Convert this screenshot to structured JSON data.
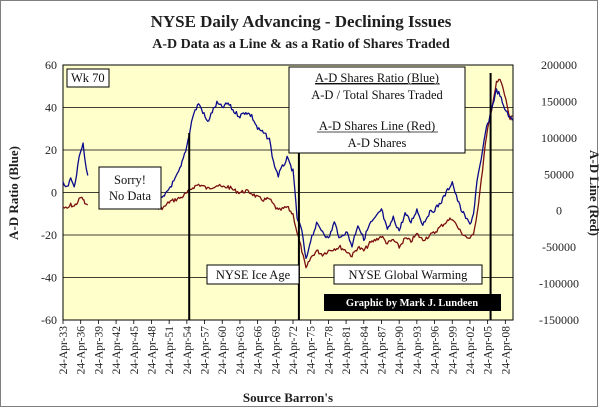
{
  "chart_data": {
    "type": "line",
    "title": "NYSE Daily Advancing - Declining Issues",
    "subtitle": "A-D Data as a Line & as a Ratio of Shares Traded",
    "xlabel": "Source Barron's",
    "ylabel_left": "A-D Ratio (Blue)",
    "ylabel_right": "A-D Line (Red)",
    "ylim_left": [
      -60,
      60
    ],
    "ylim_right": [
      -150000,
      200000
    ],
    "yticks_left": [
      60,
      40,
      20,
      0,
      -20,
      -40,
      -60
    ],
    "yticks_right": [
      "200000",
      "150000",
      "100000",
      "50000",
      "0",
      "-50000",
      "-100000",
      "-150000"
    ],
    "xlim_years": [
      1933.3,
      2009.6
    ],
    "x_tick_labels": [
      "24-Apr-33",
      "24-Apr-36",
      "24-Apr-39",
      "24-Apr-42",
      "24-Apr-45",
      "24-Apr-48",
      "24-Apr-51",
      "24-Apr-54",
      "24-Apr-57",
      "24-Apr-60",
      "24-Apr-63",
      "24-Apr-66",
      "24-Apr-69",
      "24-Apr-72",
      "24-Apr-75",
      "24-Apr-78",
      "24-Apr-81",
      "24-Apr-84",
      "24-Apr-87",
      "24-Apr-90",
      "24-Apr-93",
      "24-Apr-96",
      "24-Apr-99",
      "24-Apr-02",
      "24-Apr-05",
      "24-Apr-08"
    ],
    "x_tick_years": [
      1933.3,
      1936.3,
      1939.3,
      1942.3,
      1945.3,
      1948.3,
      1951.3,
      1954.3,
      1957.3,
      1960.3,
      1963.3,
      1966.3,
      1969.3,
      1972.3,
      1975.3,
      1978.3,
      1981.3,
      1984.3,
      1987.3,
      1990.3,
      1993.3,
      1996.3,
      1999.3,
      2002.3,
      2005.3,
      2008.3
    ],
    "no_data_gap_years": [
      1937.5,
      1947.5
    ],
    "series": [
      {
        "name": "A-D Shares Ratio (Blue)",
        "axis": "left",
        "color": "#0b0b8c",
        "points": [
          [
            1933.3,
            4
          ],
          [
            1934.0,
            2
          ],
          [
            1934.6,
            6
          ],
          [
            1935.2,
            3
          ],
          [
            1935.8,
            12
          ],
          [
            1936.3,
            20
          ],
          [
            1936.7,
            24
          ],
          [
            1937.0,
            16
          ],
          [
            1937.5,
            8
          ],
          null,
          [
            1947.5,
            0
          ],
          [
            1948.5,
            -3
          ],
          [
            1949.5,
            -4
          ],
          [
            1950.5,
            -2
          ],
          [
            1951.3,
            2
          ],
          [
            1952.3,
            6
          ],
          [
            1953.3,
            12
          ],
          [
            1954.3,
            22
          ],
          [
            1955.3,
            36
          ],
          [
            1956.3,
            42
          ],
          [
            1957.0,
            38
          ],
          [
            1957.8,
            33
          ],
          [
            1958.6,
            38
          ],
          [
            1959.4,
            42
          ],
          [
            1960.3,
            40
          ],
          [
            1961.3,
            42
          ],
          [
            1962.3,
            38
          ],
          [
            1963.3,
            36
          ],
          [
            1964.3,
            38
          ],
          [
            1965.3,
            36
          ],
          [
            1966.3,
            30
          ],
          [
            1967.3,
            28
          ],
          [
            1968.3,
            25
          ],
          [
            1969.0,
            14
          ],
          [
            1969.8,
            8
          ],
          [
            1970.5,
            12
          ],
          [
            1971.3,
            16
          ],
          [
            1972.3,
            10
          ],
          [
            1973.0,
            -12
          ],
          [
            1973.8,
            -18
          ],
          [
            1974.5,
            -32
          ],
          [
            1975.3,
            -22
          ],
          [
            1976.3,
            -15
          ],
          [
            1977.3,
            -18
          ],
          [
            1978.3,
            -22
          ],
          [
            1979.3,
            -14
          ],
          [
            1980.3,
            -22
          ],
          [
            1981.3,
            -18
          ],
          [
            1982.3,
            -25
          ],
          [
            1983.3,
            -15
          ],
          [
            1984.3,
            -22
          ],
          [
            1985.3,
            -15
          ],
          [
            1986.3,
            -12
          ],
          [
            1987.3,
            -8
          ],
          [
            1988.3,
            -18
          ],
          [
            1989.3,
            -12
          ],
          [
            1990.3,
            -18
          ],
          [
            1991.3,
            -10
          ],
          [
            1992.3,
            -14
          ],
          [
            1993.3,
            -8
          ],
          [
            1994.3,
            -15
          ],
          [
            1995.3,
            -10
          ],
          [
            1996.3,
            -8
          ],
          [
            1997.3,
            -5
          ],
          [
            1998.3,
            0
          ],
          [
            1999.3,
            5
          ],
          [
            2000.0,
            -2
          ],
          [
            2000.8,
            -8
          ],
          [
            2001.6,
            -12
          ],
          [
            2002.3,
            -15
          ],
          [
            2002.9,
            -10
          ],
          [
            2003.5,
            5
          ],
          [
            2004.2,
            15
          ],
          [
            2004.9,
            28
          ],
          [
            2005.5,
            34
          ],
          [
            2006.2,
            42
          ],
          [
            2006.8,
            48
          ],
          [
            2007.4,
            46
          ],
          [
            2008.0,
            40
          ],
          [
            2008.6,
            38
          ],
          [
            2009.1,
            35
          ],
          [
            2009.5,
            34
          ]
        ]
      },
      {
        "name": "A-D Shares Line (Red)",
        "axis": "right",
        "color": "#7a1010",
        "points": [
          [
            1933.3,
            5000
          ],
          [
            1934.0,
            2000
          ],
          [
            1934.6,
            8000
          ],
          [
            1935.2,
            6000
          ],
          [
            1935.8,
            12000
          ],
          [
            1936.3,
            18000
          ],
          [
            1936.7,
            16000
          ],
          [
            1937.0,
            10000
          ],
          [
            1937.5,
            8000
          ],
          null,
          [
            1947.5,
            8000
          ],
          [
            1948.5,
            6000
          ],
          [
            1949.5,
            3000
          ],
          [
            1950.5,
            5000
          ],
          [
            1951.3,
            12000
          ],
          [
            1952.3,
            15000
          ],
          [
            1953.3,
            18000
          ],
          [
            1954.3,
            24000
          ],
          [
            1955.3,
            32000
          ],
          [
            1956.3,
            36000
          ],
          [
            1957.0,
            34000
          ],
          [
            1957.8,
            30000
          ],
          [
            1958.6,
            33000
          ],
          [
            1959.4,
            35000
          ],
          [
            1960.3,
            32000
          ],
          [
            1961.3,
            33000
          ],
          [
            1962.3,
            28000
          ],
          [
            1963.3,
            25000
          ],
          [
            1964.3,
            27000
          ],
          [
            1965.3,
            24000
          ],
          [
            1966.3,
            18000
          ],
          [
            1967.3,
            15000
          ],
          [
            1968.3,
            16000
          ],
          [
            1969.0,
            8000
          ],
          [
            1969.8,
            0
          ],
          [
            1970.5,
            2000
          ],
          [
            1971.3,
            5000
          ],
          [
            1972.3,
            -5000
          ],
          [
            1973.0,
            -30000
          ],
          [
            1973.8,
            -55000
          ],
          [
            1974.5,
            -80000
          ],
          [
            1975.3,
            -65000
          ],
          [
            1976.3,
            -55000
          ],
          [
            1977.3,
            -60000
          ],
          [
            1978.3,
            -55000
          ],
          [
            1979.3,
            -52000
          ],
          [
            1980.3,
            -50000
          ],
          [
            1981.3,
            -55000
          ],
          [
            1982.3,
            -62000
          ],
          [
            1983.3,
            -50000
          ],
          [
            1984.3,
            -55000
          ],
          [
            1985.3,
            -45000
          ],
          [
            1986.3,
            -40000
          ],
          [
            1987.3,
            -35000
          ],
          [
            1988.3,
            -45000
          ],
          [
            1989.3,
            -40000
          ],
          [
            1990.3,
            -50000
          ],
          [
            1991.3,
            -38000
          ],
          [
            1992.3,
            -42000
          ],
          [
            1993.3,
            -32000
          ],
          [
            1994.3,
            -40000
          ],
          [
            1995.3,
            -35000
          ],
          [
            1996.3,
            -30000
          ],
          [
            1997.3,
            -22000
          ],
          [
            1998.3,
            -15000
          ],
          [
            1999.3,
            -10000
          ],
          [
            2000.0,
            -20000
          ],
          [
            2000.8,
            -30000
          ],
          [
            2001.6,
            -35000
          ],
          [
            2002.3,
            -40000
          ],
          [
            2002.9,
            -30000
          ],
          [
            2003.5,
            -5000
          ],
          [
            2004.2,
            40000
          ],
          [
            2004.9,
            90000
          ],
          [
            2005.5,
            120000
          ],
          [
            2006.2,
            150000
          ],
          [
            2006.8,
            175000
          ],
          [
            2007.4,
            180000
          ],
          [
            2008.0,
            165000
          ],
          [
            2008.6,
            145000
          ],
          [
            2009.1,
            125000
          ],
          [
            2009.5,
            130000
          ]
        ]
      }
    ],
    "marker_lines_years": [
      1954.7,
      1973.3,
      2005.8
    ],
    "annotations": {
      "week": "Wk 70",
      "no_data": [
        "Sorry!",
        "No Data"
      ],
      "legend_ratio_title": "A-D Shares Ratio (Blue)",
      "legend_ratio_desc": "A-D / Total Shares Traded",
      "legend_line_title": "A-D Shares Line (Red)",
      "legend_line_desc": "A-D Shares",
      "ice_age": "NYSE Ice Age",
      "global_warming": "NYSE Global Warming",
      "credit": "Graphic by Mark J. Lundeen"
    },
    "colors": {
      "plot_bg": "#ffffcc",
      "grid": "#000000",
      "ratio": "#0b0b8c",
      "line": "#7a1010"
    }
  }
}
